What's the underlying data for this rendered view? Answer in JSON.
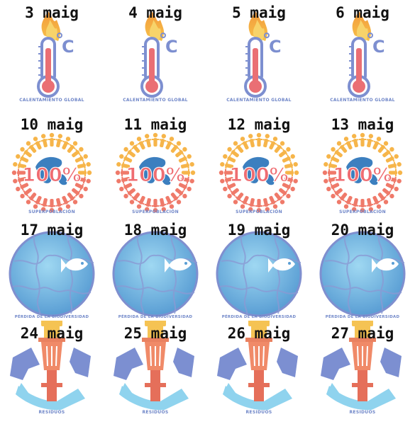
{
  "rows": [
    {
      "theme": "thermometer",
      "caption": "CALENTAMIENTO GLOBAL",
      "dates": [
        "3 maig",
        "4 maig",
        "5 maig",
        "6 maig"
      ]
    },
    {
      "theme": "overpopulation",
      "caption": "SUPERPOBLACIÓN",
      "badge": "100%",
      "dates": [
        "10 maig",
        "11 maig",
        "12 maig",
        "13 maig"
      ]
    },
    {
      "theme": "biodiversity",
      "caption": "PÉRDIDA DE LA BIODIVERSIDAD",
      "dates": [
        "17 maig",
        "18 maig",
        "19 maig",
        "20 maig"
      ]
    },
    {
      "theme": "waste",
      "caption": "RESIDUOS",
      "dates": [
        "24 maig",
        "25 maig",
        "26 maig",
        "27 maig"
      ]
    }
  ],
  "icons": [
    "thermometer-icon",
    "crowd-globe-icon",
    "puzzle-globe-fish-icon",
    "recycle-bin-icon"
  ],
  "colors": {
    "caption": "#6f86c8",
    "date": "#111111"
  }
}
